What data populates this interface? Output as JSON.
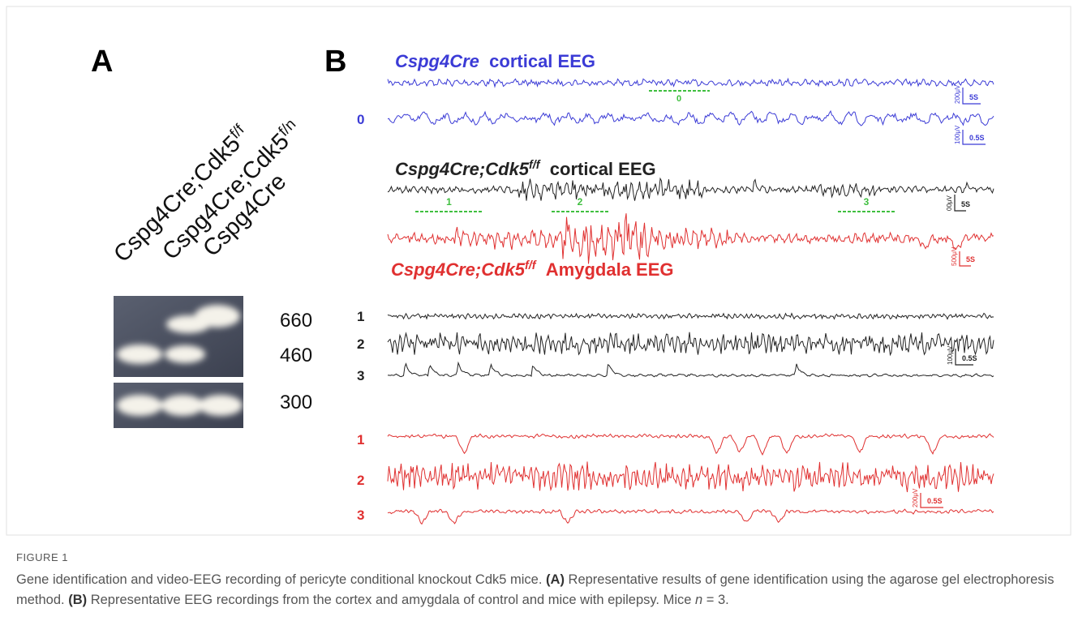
{
  "panel_a": {
    "label": "A",
    "lanes": [
      {
        "base": "Cspg4Cre;Cdk5",
        "sup": "f/f"
      },
      {
        "base": "Cspg4Cre;Cdk5",
        "sup": "f/n"
      },
      {
        "base": "Cspg4Cre"
      }
    ],
    "band_sizes": [
      "660",
      "460",
      "300"
    ]
  },
  "panel_b": {
    "label": "B",
    "control": {
      "title_italic": "Cspg4Cre",
      "title_rest": "cortical EEG",
      "trace_label": "0",
      "segment_label": "0",
      "scale_5s": {
        "amp": "200μV",
        "time": "5S"
      },
      "scale_05s": {
        "amp": "100μV",
        "time": "0.5S"
      }
    },
    "ko_cortical": {
      "title_italic": "Cspg4Cre;Cdk5",
      "title_sup": "f/f",
      "title_rest": "cortical EEG",
      "segment_labels": [
        "1",
        "2",
        "3"
      ],
      "scale": {
        "amp": "00μV",
        "time": "5S"
      }
    },
    "ko_amygdala": {
      "title_italic": "Cspg4Cre;Cdk5",
      "title_sup": "f/f",
      "title_rest": "Amygdala EEG",
      "scale": {
        "amp": "500μV",
        "time": "5S"
      }
    },
    "cortical_expanded": {
      "trace_labels": [
        "1",
        "2",
        "3"
      ],
      "scale": {
        "amp": "100μV",
        "time": "0.5S"
      }
    },
    "amygdala_expanded": {
      "trace_labels": [
        "1",
        "2",
        "3"
      ],
      "scale": {
        "amp": "200μV",
        "time": "0.5S"
      }
    }
  },
  "caption": {
    "label": "FIGURE 1",
    "parts": [
      {
        "text": "Gene identification and video-EEG recording of pericyte conditional knockout Cdk5 mice. "
      },
      {
        "text": "(A)",
        "bold": true
      },
      {
        "text": " Representative results of gene identification using the agarose gel electrophoresis method. "
      },
      {
        "text": "(B)",
        "bold": true
      },
      {
        "text": " Representative EEG recordings from the cortex and amygdala of control and mice with epilepsy. Mice "
      },
      {
        "text": "n",
        "italic": true
      },
      {
        "text": " = 3."
      }
    ]
  }
}
